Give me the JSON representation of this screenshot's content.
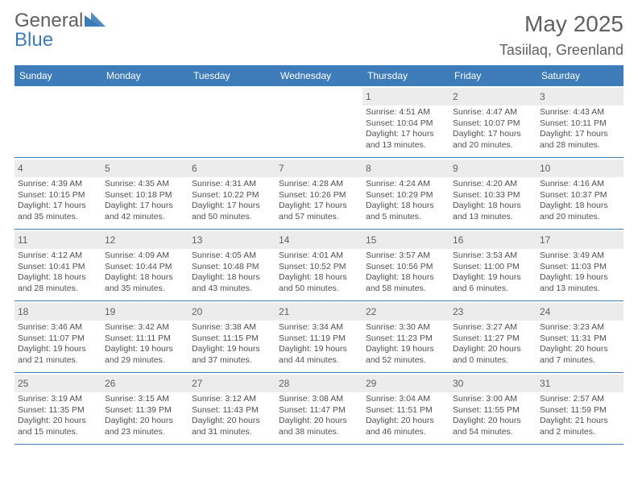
{
  "brand": {
    "part1": "General",
    "part2": "Blue",
    "triangle_color": "#3d7cb9"
  },
  "title": "May 2025",
  "location": "Tasiilaq, Greenland",
  "colors": {
    "header_bar": "#3d7cb9",
    "daynum_bg": "#ececec",
    "text_muted": "#606060",
    "text_body": "#505050",
    "rule": "#3d7cb9"
  },
  "weekdays": [
    "Sunday",
    "Monday",
    "Tuesday",
    "Wednesday",
    "Thursday",
    "Friday",
    "Saturday"
  ],
  "weeks": [
    [
      null,
      null,
      null,
      null,
      {
        "n": "1",
        "sr": "Sunrise: 4:51 AM",
        "ss": "Sunset: 10:04 PM",
        "d1": "Daylight: 17 hours",
        "d2": "and 13 minutes."
      },
      {
        "n": "2",
        "sr": "Sunrise: 4:47 AM",
        "ss": "Sunset: 10:07 PM",
        "d1": "Daylight: 17 hours",
        "d2": "and 20 minutes."
      },
      {
        "n": "3",
        "sr": "Sunrise: 4:43 AM",
        "ss": "Sunset: 10:11 PM",
        "d1": "Daylight: 17 hours",
        "d2": "and 28 minutes."
      }
    ],
    [
      {
        "n": "4",
        "sr": "Sunrise: 4:39 AM",
        "ss": "Sunset: 10:15 PM",
        "d1": "Daylight: 17 hours",
        "d2": "and 35 minutes."
      },
      {
        "n": "5",
        "sr": "Sunrise: 4:35 AM",
        "ss": "Sunset: 10:18 PM",
        "d1": "Daylight: 17 hours",
        "d2": "and 42 minutes."
      },
      {
        "n": "6",
        "sr": "Sunrise: 4:31 AM",
        "ss": "Sunset: 10:22 PM",
        "d1": "Daylight: 17 hours",
        "d2": "and 50 minutes."
      },
      {
        "n": "7",
        "sr": "Sunrise: 4:28 AM",
        "ss": "Sunset: 10:26 PM",
        "d1": "Daylight: 17 hours",
        "d2": "and 57 minutes."
      },
      {
        "n": "8",
        "sr": "Sunrise: 4:24 AM",
        "ss": "Sunset: 10:29 PM",
        "d1": "Daylight: 18 hours",
        "d2": "and 5 minutes."
      },
      {
        "n": "9",
        "sr": "Sunrise: 4:20 AM",
        "ss": "Sunset: 10:33 PM",
        "d1": "Daylight: 18 hours",
        "d2": "and 13 minutes."
      },
      {
        "n": "10",
        "sr": "Sunrise: 4:16 AM",
        "ss": "Sunset: 10:37 PM",
        "d1": "Daylight: 18 hours",
        "d2": "and 20 minutes."
      }
    ],
    [
      {
        "n": "11",
        "sr": "Sunrise: 4:12 AM",
        "ss": "Sunset: 10:41 PM",
        "d1": "Daylight: 18 hours",
        "d2": "and 28 minutes."
      },
      {
        "n": "12",
        "sr": "Sunrise: 4:09 AM",
        "ss": "Sunset: 10:44 PM",
        "d1": "Daylight: 18 hours",
        "d2": "and 35 minutes."
      },
      {
        "n": "13",
        "sr": "Sunrise: 4:05 AM",
        "ss": "Sunset: 10:48 PM",
        "d1": "Daylight: 18 hours",
        "d2": "and 43 minutes."
      },
      {
        "n": "14",
        "sr": "Sunrise: 4:01 AM",
        "ss": "Sunset: 10:52 PM",
        "d1": "Daylight: 18 hours",
        "d2": "and 50 minutes."
      },
      {
        "n": "15",
        "sr": "Sunrise: 3:57 AM",
        "ss": "Sunset: 10:56 PM",
        "d1": "Daylight: 18 hours",
        "d2": "and 58 minutes."
      },
      {
        "n": "16",
        "sr": "Sunrise: 3:53 AM",
        "ss": "Sunset: 11:00 PM",
        "d1": "Daylight: 19 hours",
        "d2": "and 6 minutes."
      },
      {
        "n": "17",
        "sr": "Sunrise: 3:49 AM",
        "ss": "Sunset: 11:03 PM",
        "d1": "Daylight: 19 hours",
        "d2": "and 13 minutes."
      }
    ],
    [
      {
        "n": "18",
        "sr": "Sunrise: 3:46 AM",
        "ss": "Sunset: 11:07 PM",
        "d1": "Daylight: 19 hours",
        "d2": "and 21 minutes."
      },
      {
        "n": "19",
        "sr": "Sunrise: 3:42 AM",
        "ss": "Sunset: 11:11 PM",
        "d1": "Daylight: 19 hours",
        "d2": "and 29 minutes."
      },
      {
        "n": "20",
        "sr": "Sunrise: 3:38 AM",
        "ss": "Sunset: 11:15 PM",
        "d1": "Daylight: 19 hours",
        "d2": "and 37 minutes."
      },
      {
        "n": "21",
        "sr": "Sunrise: 3:34 AM",
        "ss": "Sunset: 11:19 PM",
        "d1": "Daylight: 19 hours",
        "d2": "and 44 minutes."
      },
      {
        "n": "22",
        "sr": "Sunrise: 3:30 AM",
        "ss": "Sunset: 11:23 PM",
        "d1": "Daylight: 19 hours",
        "d2": "and 52 minutes."
      },
      {
        "n": "23",
        "sr": "Sunrise: 3:27 AM",
        "ss": "Sunset: 11:27 PM",
        "d1": "Daylight: 20 hours",
        "d2": "and 0 minutes."
      },
      {
        "n": "24",
        "sr": "Sunrise: 3:23 AM",
        "ss": "Sunset: 11:31 PM",
        "d1": "Daylight: 20 hours",
        "d2": "and 7 minutes."
      }
    ],
    [
      {
        "n": "25",
        "sr": "Sunrise: 3:19 AM",
        "ss": "Sunset: 11:35 PM",
        "d1": "Daylight: 20 hours",
        "d2": "and 15 minutes."
      },
      {
        "n": "26",
        "sr": "Sunrise: 3:15 AM",
        "ss": "Sunset: 11:39 PM",
        "d1": "Daylight: 20 hours",
        "d2": "and 23 minutes."
      },
      {
        "n": "27",
        "sr": "Sunrise: 3:12 AM",
        "ss": "Sunset: 11:43 PM",
        "d1": "Daylight: 20 hours",
        "d2": "and 31 minutes."
      },
      {
        "n": "28",
        "sr": "Sunrise: 3:08 AM",
        "ss": "Sunset: 11:47 PM",
        "d1": "Daylight: 20 hours",
        "d2": "and 38 minutes."
      },
      {
        "n": "29",
        "sr": "Sunrise: 3:04 AM",
        "ss": "Sunset: 11:51 PM",
        "d1": "Daylight: 20 hours",
        "d2": "and 46 minutes."
      },
      {
        "n": "30",
        "sr": "Sunrise: 3:00 AM",
        "ss": "Sunset: 11:55 PM",
        "d1": "Daylight: 20 hours",
        "d2": "and 54 minutes."
      },
      {
        "n": "31",
        "sr": "Sunrise: 2:57 AM",
        "ss": "Sunset: 11:59 PM",
        "d1": "Daylight: 21 hours",
        "d2": "and 2 minutes."
      }
    ]
  ]
}
